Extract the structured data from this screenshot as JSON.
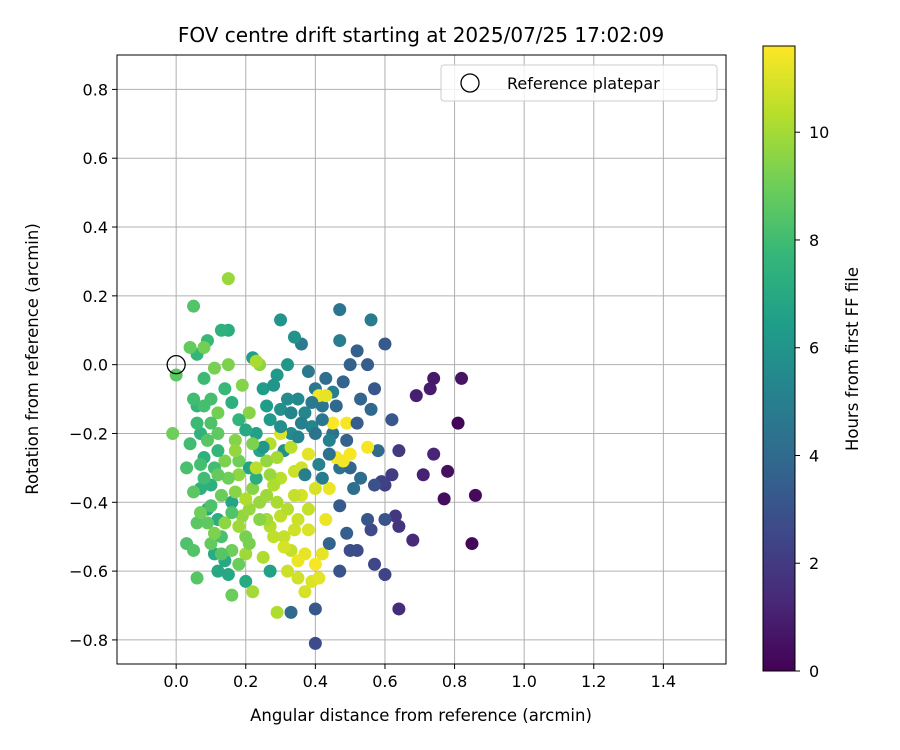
{
  "chart_data": {
    "type": "scatter",
    "title": "FOV centre drift starting at 2025/07/25 17:02:09",
    "xlabel": "Angular distance from reference (arcmin)",
    "ylabel": "Rotation from reference (arcmin)",
    "xlim": [
      -0.17,
      1.58
    ],
    "ylim": [
      -0.87,
      0.9
    ],
    "xticks": [
      0.0,
      0.2,
      0.4,
      0.6,
      0.8,
      1.0,
      1.2,
      1.4
    ],
    "xtick_labels": [
      "0.0",
      "0.2",
      "0.4",
      "0.6",
      "0.8",
      "1.0",
      "1.2",
      "1.4"
    ],
    "yticks": [
      -0.8,
      -0.6,
      -0.4,
      -0.2,
      0.0,
      0.2,
      0.4,
      0.6,
      0.8
    ],
    "ytick_labels": [
      "−0.8",
      "−0.6",
      "−0.4",
      "−0.2",
      "0.0",
      "0.2",
      "0.4",
      "0.6",
      "0.8"
    ],
    "grid": true,
    "legend": {
      "position": "top-right",
      "entries": [
        "Reference platepar"
      ]
    },
    "reference_point": {
      "name": "Reference platepar",
      "x": 0.0,
      "y": 0.0
    },
    "colorbar": {
      "label": "Hours from first FF file",
      "colormap": "viridis",
      "range": [
        0,
        11.6
      ],
      "ticks": [
        0,
        2,
        4,
        6,
        8,
        10
      ],
      "tick_labels": [
        "0",
        "2",
        "4",
        "6",
        "8",
        "10"
      ],
      "stops": [
        "#440154",
        "#482878",
        "#3e4989",
        "#31688e",
        "#26828e",
        "#1f9e89",
        "#35b779",
        "#6ece58",
        "#b5de2b",
        "#fde725"
      ]
    },
    "points": [
      [
        0.81,
        -0.17,
        0.1
      ],
      [
        0.85,
        -0.52,
        0.2
      ],
      [
        0.86,
        -0.38,
        0.3
      ],
      [
        0.77,
        -0.39,
        0.4
      ],
      [
        0.78,
        -0.31,
        0.5
      ],
      [
        0.82,
        -0.04,
        0.6
      ],
      [
        0.74,
        -0.04,
        0.8
      ],
      [
        0.73,
        -0.07,
        0.9
      ],
      [
        0.69,
        -0.09,
        1.0
      ],
      [
        0.71,
        -0.32,
        1.1
      ],
      [
        0.74,
        -0.26,
        1.2
      ],
      [
        0.68,
        -0.51,
        1.4
      ],
      [
        0.64,
        -0.71,
        1.5
      ],
      [
        0.64,
        -0.47,
        1.7
      ],
      [
        0.63,
        -0.44,
        1.9
      ],
      [
        0.64,
        -0.25,
        2.0
      ],
      [
        0.62,
        -0.32,
        2.1
      ],
      [
        0.6,
        -0.35,
        2.2
      ],
      [
        0.59,
        -0.34,
        2.3
      ],
      [
        0.6,
        -0.61,
        2.4
      ],
      [
        0.57,
        -0.58,
        2.5
      ],
      [
        0.56,
        -0.48,
        2.6
      ],
      [
        0.52,
        -0.54,
        2.7
      ],
      [
        0.5,
        -0.54,
        2.8
      ],
      [
        0.57,
        -0.35,
        2.9
      ],
      [
        0.6,
        -0.45,
        3.0
      ],
      [
        0.55,
        -0.45,
        3.1
      ],
      [
        0.62,
        -0.16,
        3.2
      ],
      [
        0.57,
        -0.07,
        3.2
      ],
      [
        0.6,
        0.06,
        3.3
      ],
      [
        0.55,
        0.0,
        3.4
      ],
      [
        0.52,
        0.04,
        3.5
      ],
      [
        0.5,
        0.0,
        3.6
      ],
      [
        0.48,
        -0.05,
        3.7
      ],
      [
        0.53,
        -0.1,
        3.8
      ],
      [
        0.56,
        -0.13,
        3.9
      ],
      [
        0.58,
        -0.25,
        4.0
      ],
      [
        0.53,
        -0.33,
        4.1
      ],
      [
        0.51,
        -0.36,
        4.2
      ],
      [
        0.47,
        -0.3,
        4.3
      ],
      [
        0.45,
        -0.2,
        4.4
      ],
      [
        0.42,
        -0.12,
        4.5
      ],
      [
        0.4,
        -0.07,
        4.6
      ],
      [
        0.38,
        -0.02,
        4.7
      ],
      [
        0.36,
        0.06,
        4.8
      ],
      [
        0.47,
        0.16,
        4.5
      ],
      [
        0.56,
        0.13,
        4.8
      ],
      [
        0.47,
        0.07,
        4.9
      ],
      [
        0.45,
        -0.08,
        5.0
      ],
      [
        0.44,
        -0.22,
        5.1
      ],
      [
        0.41,
        -0.29,
        5.2
      ],
      [
        0.39,
        -0.18,
        5.3
      ],
      [
        0.37,
        -0.14,
        5.4
      ],
      [
        0.35,
        -0.1,
        5.5
      ],
      [
        0.33,
        -0.2,
        5.6
      ],
      [
        0.31,
        -0.25,
        5.7
      ],
      [
        0.3,
        -0.13,
        5.8
      ],
      [
        0.34,
        0.08,
        5.9
      ],
      [
        0.3,
        0.13,
        6.0
      ],
      [
        0.32,
        0.0,
        6.1
      ],
      [
        0.29,
        -0.03,
        6.2
      ],
      [
        0.27,
        -0.16,
        6.3
      ],
      [
        0.25,
        -0.07,
        6.4
      ],
      [
        0.22,
        0.02,
        6.5
      ],
      [
        0.23,
        -0.2,
        6.6
      ],
      [
        0.21,
        -0.3,
        6.7
      ],
      [
        0.16,
        -0.4,
        6.8
      ],
      [
        0.15,
        -0.61,
        6.9
      ],
      [
        0.14,
        -0.57,
        7.0
      ],
      [
        0.2,
        -0.63,
        7.0
      ],
      [
        0.11,
        -0.55,
        7.1
      ],
      [
        0.12,
        -0.45,
        7.2
      ],
      [
        0.1,
        -0.35,
        7.3
      ],
      [
        0.08,
        -0.27,
        7.4
      ],
      [
        0.07,
        -0.2,
        7.5
      ],
      [
        0.06,
        -0.12,
        7.6
      ],
      [
        0.06,
        0.03,
        7.7
      ],
      [
        0.15,
        0.1,
        7.2
      ],
      [
        0.13,
        0.1,
        7.4
      ],
      [
        0.09,
        0.07,
        7.8
      ],
      [
        0.08,
        -0.04,
        7.9
      ],
      [
        0.05,
        -0.1,
        8.0
      ],
      [
        0.07,
        -0.29,
        8.1
      ],
      [
        0.03,
        -0.3,
        8.2
      ],
      [
        0.03,
        -0.52,
        8.3
      ],
      [
        0.05,
        -0.54,
        8.4
      ],
      [
        0.06,
        -0.62,
        8.5
      ],
      [
        0.06,
        -0.46,
        8.6
      ],
      [
        0.09,
        -0.46,
        8.7
      ],
      [
        0.1,
        -0.52,
        8.8
      ],
      [
        0.16,
        -0.67,
        8.9
      ],
      [
        0.04,
        0.05,
        8.8
      ],
      [
        0.05,
        0.17,
        8.4
      ],
      [
        0.0,
        -0.03,
        8.6
      ],
      [
        -0.01,
        -0.2,
        9.0
      ],
      [
        0.08,
        0.05,
        9.1
      ],
      [
        0.11,
        -0.01,
        9.2
      ],
      [
        0.15,
        0.0,
        9.3
      ],
      [
        0.19,
        -0.06,
        9.4
      ],
      [
        0.21,
        -0.14,
        9.5
      ],
      [
        0.24,
        0.0,
        9.6
      ],
      [
        0.26,
        -0.28,
        9.7
      ],
      [
        0.24,
        -0.4,
        9.8
      ],
      [
        0.2,
        -0.55,
        9.9
      ],
      [
        0.22,
        -0.66,
        10.0
      ],
      [
        0.29,
        -0.72,
        10.2
      ],
      [
        0.15,
        0.25,
        9.8
      ],
      [
        0.23,
        0.01,
        10.1
      ],
      [
        0.27,
        -0.23,
        10.3
      ],
      [
        0.3,
        -0.33,
        10.4
      ],
      [
        0.3,
        -0.44,
        10.5
      ],
      [
        0.33,
        -0.54,
        10.6
      ],
      [
        0.32,
        -0.6,
        10.7
      ],
      [
        0.35,
        -0.62,
        10.8
      ],
      [
        0.37,
        -0.66,
        10.9
      ],
      [
        0.39,
        -0.63,
        11.0
      ],
      [
        0.41,
        -0.62,
        11.1
      ],
      [
        0.42,
        -0.55,
        11.2
      ],
      [
        0.43,
        -0.45,
        11.3
      ],
      [
        0.44,
        -0.36,
        11.3
      ],
      [
        0.46,
        -0.27,
        11.4
      ],
      [
        0.49,
        -0.17,
        11.5
      ],
      [
        0.55,
        -0.24,
        11.5
      ],
      [
        0.41,
        -0.09,
        11.4
      ],
      [
        0.3,
        -0.2,
        11.0
      ],
      [
        0.34,
        -0.48,
        10.8
      ],
      [
        0.38,
        -0.42,
        10.6
      ],
      [
        0.36,
        -0.38,
        10.9
      ],
      [
        0.34,
        -0.31,
        10.7
      ],
      [
        0.31,
        -0.5,
        10.6
      ],
      [
        0.27,
        -0.47,
        10.3
      ],
      [
        0.25,
        -0.56,
        10.2
      ],
      [
        0.18,
        -0.32,
        9.6
      ],
      [
        0.14,
        -0.28,
        9.3
      ],
      [
        0.12,
        -0.14,
        9.1
      ],
      [
        0.17,
        -0.22,
        9.4
      ],
      [
        0.19,
        -0.44,
        9.7
      ],
      [
        0.13,
        -0.38,
        8.9
      ],
      [
        0.09,
        -0.22,
        8.5
      ],
      [
        0.11,
        -0.3,
        8.0
      ],
      [
        0.13,
        -0.5,
        8.2
      ],
      [
        0.16,
        -0.54,
        9.0
      ],
      [
        0.2,
        -0.5,
        9.2
      ],
      [
        0.22,
        -0.36,
        9.5
      ],
      [
        0.26,
        -0.38,
        9.9
      ],
      [
        0.29,
        -0.4,
        10.1
      ],
      [
        0.33,
        -0.24,
        10.4
      ],
      [
        0.36,
        -0.3,
        10.8
      ],
      [
        0.38,
        -0.26,
        11.1
      ],
      [
        0.4,
        -0.2,
        4.4
      ],
      [
        0.43,
        -0.04,
        4.2
      ],
      [
        0.46,
        -0.12,
        3.9
      ],
      [
        0.49,
        -0.22,
        3.6
      ],
      [
        0.52,
        -0.17,
        3.4
      ],
      [
        0.5,
        -0.3,
        3.8
      ],
      [
        0.47,
        -0.41,
        3.3
      ],
      [
        0.42,
        -0.33,
        4.8
      ],
      [
        0.37,
        -0.32,
        5.0
      ],
      [
        0.35,
        -0.21,
        5.2
      ],
      [
        0.32,
        -0.1,
        5.6
      ],
      [
        0.28,
        -0.06,
        6.0
      ],
      [
        0.26,
        -0.12,
        6.4
      ],
      [
        0.24,
        -0.25,
        6.8
      ],
      [
        0.23,
        -0.33,
        7.2
      ],
      [
        0.18,
        -0.16,
        7.6
      ],
      [
        0.14,
        -0.07,
        7.8
      ],
      [
        0.1,
        -0.1,
        8.1
      ],
      [
        0.07,
        -0.36,
        7.4
      ],
      [
        0.09,
        -0.42,
        7.0
      ],
      [
        0.12,
        -0.6,
        6.9
      ],
      [
        0.27,
        -0.6,
        6.6
      ],
      [
        0.33,
        -0.72,
        4.0
      ],
      [
        0.4,
        -0.71,
        3.2
      ],
      [
        0.4,
        -0.81,
        2.6
      ],
      [
        0.47,
        -0.6,
        3.0
      ],
      [
        0.44,
        -0.52,
        3.7
      ],
      [
        0.49,
        -0.49,
        3.5
      ],
      [
        0.45,
        -0.17,
        11.6
      ],
      [
        0.48,
        -0.28,
        11.4
      ],
      [
        0.5,
        -0.26,
        11.5
      ],
      [
        0.43,
        -0.09,
        11.2
      ],
      [
        0.37,
        -0.55,
        11.2
      ],
      [
        0.31,
        -0.53,
        10.9
      ],
      [
        0.28,
        -0.5,
        10.5
      ],
      [
        0.26,
        -0.45,
        10.0
      ],
      [
        0.21,
        -0.42,
        9.8
      ],
      [
        0.17,
        -0.37,
        9.5
      ],
      [
        0.15,
        -0.33,
        9.0
      ],
      [
        0.12,
        -0.2,
        8.7
      ],
      [
        0.1,
        -0.17,
        8.3
      ],
      [
        0.08,
        -0.12,
        8.1
      ],
      [
        0.06,
        -0.17,
        7.9
      ],
      [
        0.04,
        -0.23,
        8.0
      ],
      [
        0.05,
        -0.37,
        8.6
      ],
      [
        0.07,
        -0.43,
        9.0
      ],
      [
        0.11,
        -0.49,
        9.3
      ],
      [
        0.14,
        -0.46,
        9.6
      ],
      [
        0.18,
        -0.47,
        9.9
      ],
      [
        0.2,
        -0.39,
        10.2
      ],
      [
        0.23,
        -0.3,
        10.4
      ],
      [
        0.25,
        -0.24,
        6.1
      ],
      [
        0.3,
        -0.18,
        5.7
      ],
      [
        0.33,
        -0.14,
        5.3
      ],
      [
        0.36,
        -0.17,
        5.0
      ],
      [
        0.39,
        -0.11,
        4.7
      ],
      [
        0.42,
        -0.16,
        4.5
      ],
      [
        0.44,
        -0.26,
        4.3
      ],
      [
        0.4,
        -0.36,
        10.9
      ],
      [
        0.35,
        -0.45,
        10.7
      ],
      [
        0.32,
        -0.42,
        10.3
      ],
      [
        0.29,
        -0.27,
        10.0
      ],
      [
        0.27,
        -0.32,
        9.8
      ],
      [
        0.24,
        -0.45,
        9.5
      ],
      [
        0.21,
        -0.52,
        9.2
      ],
      [
        0.18,
        -0.58,
        8.9
      ],
      [
        0.13,
        -0.55,
        8.5
      ],
      [
        0.1,
        -0.41,
        8.3
      ],
      [
        0.08,
        -0.33,
        8.0
      ],
      [
        0.12,
        -0.25,
        7.7
      ],
      [
        0.16,
        -0.11,
        7.3
      ],
      [
        0.2,
        -0.19,
        7.0
      ],
      [
        0.18,
        -0.28,
        9.0
      ],
      [
        0.22,
        -0.23,
        9.3
      ],
      [
        0.28,
        -0.35,
        10.2
      ],
      [
        0.34,
        -0.38,
        10.6
      ],
      [
        0.38,
        -0.48,
        11.0
      ],
      [
        0.35,
        -0.57,
        11.3
      ],
      [
        0.4,
        -0.58,
        11.5
      ],
      [
        0.16,
        -0.43,
        8.4
      ],
      [
        0.12,
        -0.32,
        8.8
      ],
      [
        0.17,
        -0.25,
        9.7
      ]
    ]
  }
}
